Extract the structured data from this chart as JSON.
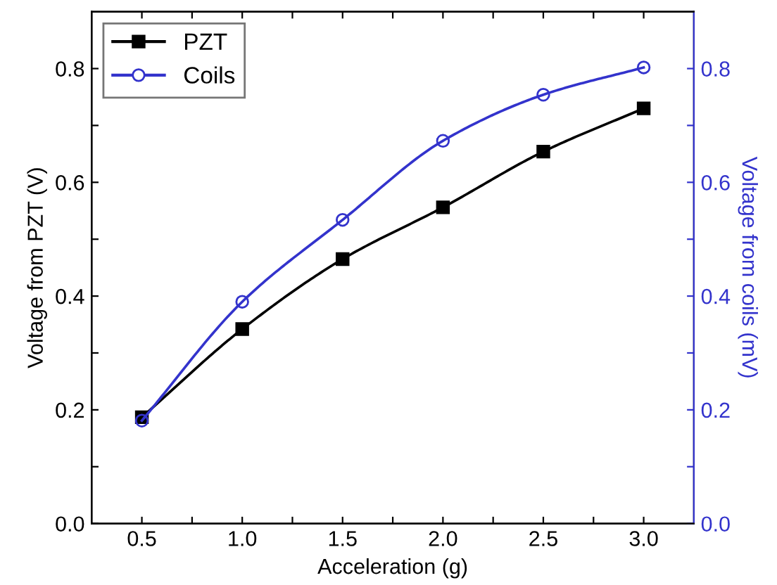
{
  "chart_data": {
    "type": "line",
    "xlabel": "Acceleration (g)",
    "ylabel": "Voltage from PZT (V)",
    "y2label": "Voltage from coils (mV)",
    "x": [
      0.5,
      1.0,
      1.5,
      2.0,
      2.5,
      3.0
    ],
    "series": [
      {
        "name": "PZT",
        "color": "#000000",
        "marker": "square",
        "values": [
          0.187,
          0.342,
          0.465,
          0.556,
          0.654,
          0.73
        ]
      },
      {
        "name": "Coils",
        "color": "#3333cc",
        "marker": "circle",
        "axis": "y2",
        "values": [
          0.181,
          0.39,
          0.534,
          0.673,
          0.754,
          0.802
        ]
      }
    ],
    "xlim": [
      0.25,
      3.25
    ],
    "xticks": [
      {
        "value": 0.5,
        "label": "0.5"
      },
      {
        "value": 0.75,
        "label": null
      },
      {
        "value": 1.0,
        "label": "1.0"
      },
      {
        "value": 1.25,
        "label": null
      },
      {
        "value": 1.5,
        "label": "1.5"
      },
      {
        "value": 1.75,
        "label": null
      },
      {
        "value": 2.0,
        "label": "2.0"
      },
      {
        "value": 2.25,
        "label": null
      },
      {
        "value": 2.5,
        "label": "2.5"
      },
      {
        "value": 2.75,
        "label": null
      },
      {
        "value": 3.0,
        "label": "3.0"
      }
    ],
    "ylim": [
      0,
      0.9
    ],
    "yticks": [
      {
        "value": 0,
        "label": "0.0"
      },
      {
        "value": 0.1,
        "label": null
      },
      {
        "value": 0.2,
        "label": "0.2"
      },
      {
        "value": 0.3,
        "label": null
      },
      {
        "value": 0.4,
        "label": "0.4"
      },
      {
        "value": 0.5,
        "label": null
      },
      {
        "value": 0.6,
        "label": "0.6"
      },
      {
        "value": 0.7,
        "label": null
      },
      {
        "value": 0.8,
        "label": "0.8"
      }
    ],
    "y2lim": [
      0,
      0.9
    ],
    "y2ticks": [
      {
        "value": 0,
        "label": "0.0"
      },
      {
        "value": 0.1,
        "label": null
      },
      {
        "value": 0.2,
        "label": "0.2"
      },
      {
        "value": 0.3,
        "label": null
      },
      {
        "value": 0.4,
        "label": "0.4"
      },
      {
        "value": 0.5,
        "label": null
      },
      {
        "value": 0.6,
        "label": "0.6"
      },
      {
        "value": 0.7,
        "label": null
      },
      {
        "value": 0.8,
        "label": "0.8"
      }
    ],
    "legend": "top left",
    "grid": false,
    "line_style": "solid"
  }
}
